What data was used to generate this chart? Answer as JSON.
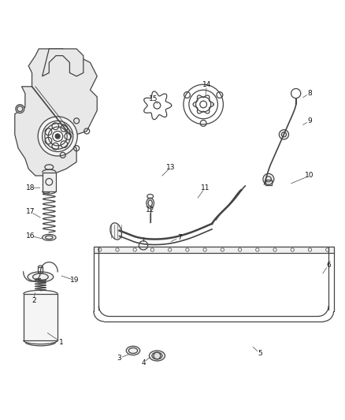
{
  "bg_color": "#ffffff",
  "line_color": "#444444",
  "figsize": [
    4.38,
    5.33
  ],
  "dpi": 100,
  "labels": [
    [
      1,
      0.175,
      0.115,
      0.13,
      0.145
    ],
    [
      2,
      0.095,
      0.235,
      0.1,
      0.265
    ],
    [
      3,
      0.345,
      0.068,
      0.38,
      0.082
    ],
    [
      4,
      0.415,
      0.055,
      0.44,
      0.075
    ],
    [
      5,
      0.755,
      0.082,
      0.73,
      0.105
    ],
    [
      6,
      0.955,
      0.34,
      0.935,
      0.31
    ],
    [
      7,
      0.52,
      0.42,
      0.49,
      0.405
    ],
    [
      8,
      0.9,
      0.84,
      0.875,
      0.825
    ],
    [
      9,
      0.9,
      0.76,
      0.875,
      0.745
    ],
    [
      10,
      0.9,
      0.6,
      0.84,
      0.575
    ],
    [
      11,
      0.595,
      0.565,
      0.57,
      0.53
    ],
    [
      12,
      0.435,
      0.5,
      0.435,
      0.455
    ],
    [
      13,
      0.495,
      0.625,
      0.465,
      0.595
    ],
    [
      14,
      0.6,
      0.865,
      0.595,
      0.825
    ],
    [
      15,
      0.445,
      0.825,
      0.46,
      0.805
    ],
    [
      16,
      0.085,
      0.425,
      0.125,
      0.415
    ],
    [
      17,
      0.085,
      0.495,
      0.12,
      0.475
    ],
    [
      18,
      0.085,
      0.565,
      0.12,
      0.565
    ],
    [
      19,
      0.215,
      0.295,
      0.17,
      0.31
    ]
  ]
}
